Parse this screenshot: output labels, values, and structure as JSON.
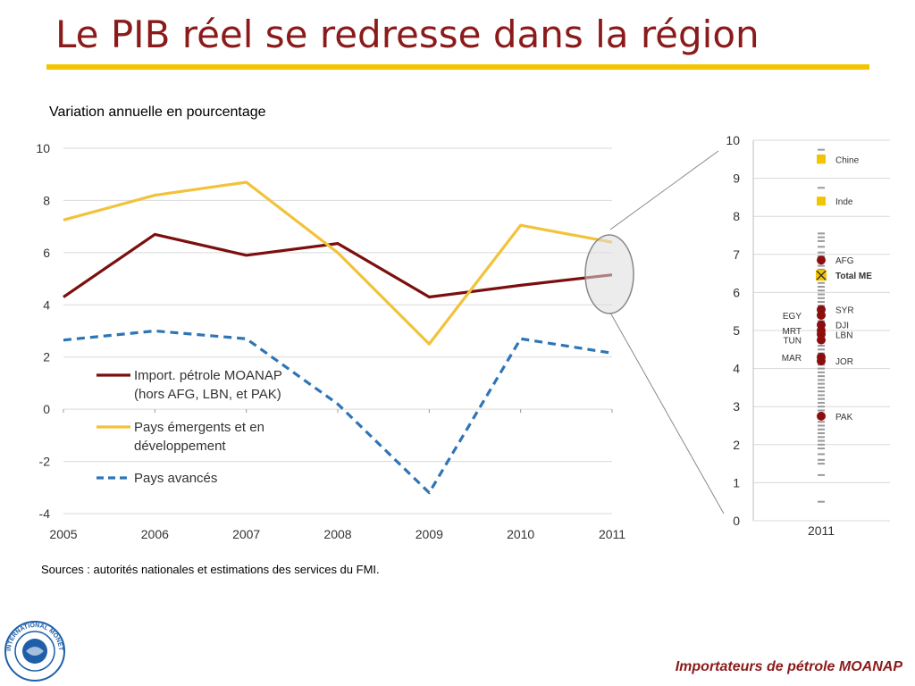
{
  "page": {
    "title": "Le PIB réel se redresse dans la région",
    "subtitle": "Variation annuelle en pourcentage",
    "sources": "Sources : autorités nationales et estimations des services du FMI.",
    "footer": "Importateurs de pétrole MOANAP",
    "accent_color": "#f2c500",
    "title_color": "#8b1a1a",
    "logo_text": "INTERNATIONAL MONETARY FUND"
  },
  "chart_data": [
    {
      "type": "line",
      "x": [
        "2005",
        "2006",
        "2007",
        "2008",
        "2009",
        "2010",
        "2011"
      ],
      "ylim": [
        -4,
        10
      ],
      "yticks": [
        "10",
        "8",
        "6",
        "4",
        "2",
        "0",
        "-2",
        "-4"
      ],
      "grid": true,
      "legend_position": "left-bottom",
      "series": [
        {
          "name": "Import. pétrole MOANAP",
          "name2": "(hors AFG, LBN, et PAK)",
          "color": "#7b0f0f",
          "style": "solid",
          "values": [
            4.3,
            6.7,
            5.9,
            6.35,
            4.3,
            4.75,
            5.15
          ]
        },
        {
          "name": "Pays émergents et en",
          "name2": "développement",
          "color": "#f2c23a",
          "style": "solid",
          "values": [
            7.25,
            8.2,
            8.7,
            6.0,
            2.5,
            7.05,
            6.4
          ]
        },
        {
          "name": "Pays avancés",
          "name2": "",
          "color": "#2e75b6",
          "style": "dashed",
          "values": [
            2.65,
            3.0,
            2.7,
            0.2,
            -3.2,
            2.7,
            2.15
          ]
        }
      ]
    },
    {
      "type": "scatter",
      "x_label": "2011",
      "ylim": [
        0,
        10
      ],
      "yticks": [
        "10",
        "9",
        "8",
        "7",
        "6",
        "5",
        "4",
        "3",
        "2",
        "1",
        "0"
      ],
      "grid": true,
      "labeled_points": [
        {
          "label": "Chine",
          "value": 9.5,
          "marker": "square",
          "color": "#f2c500",
          "side": "right"
        },
        {
          "label": "Inde",
          "value": 8.4,
          "marker": "square",
          "color": "#f2c500",
          "side": "right"
        },
        {
          "label": "AFG",
          "value": 6.85,
          "marker": "circle",
          "color": "#8b0f0f",
          "side": "right"
        },
        {
          "label": "Total ME",
          "value": 6.45,
          "marker": "x",
          "color": "#f2c500",
          "side": "right",
          "bold": true
        },
        {
          "label": "SYR",
          "value": 5.55,
          "marker": "circle",
          "color": "#8b0f0f",
          "side": "right"
        },
        {
          "label": "EGY",
          "value": 5.4,
          "marker": "circle",
          "color": "#8b0f0f",
          "side": "left"
        },
        {
          "label": "DJI",
          "value": 5.15,
          "marker": "circle",
          "color": "#8b0f0f",
          "side": "right"
        },
        {
          "label": "MRT",
          "value": 5.0,
          "marker": "circle",
          "color": "#8b0f0f",
          "side": "left"
        },
        {
          "label": "LBN",
          "value": 4.9,
          "marker": "circle",
          "color": "#8b0f0f",
          "side": "right"
        },
        {
          "label": "TUN",
          "value": 4.75,
          "marker": "circle",
          "color": "#8b0f0f",
          "side": "left"
        },
        {
          "label": "MAR",
          "value": 4.3,
          "marker": "circle",
          "color": "#8b0f0f",
          "side": "left"
        },
        {
          "label": "JOR",
          "value": 4.2,
          "marker": "circle",
          "color": "#8b0f0f",
          "side": "right"
        },
        {
          "label": "PAK",
          "value": 2.75,
          "marker": "circle",
          "color": "#8b0f0f",
          "side": "right"
        }
      ],
      "other_countries": [
        9.75,
        9.6,
        8.75,
        7.55,
        7.45,
        7.35,
        7.2,
        7.05,
        6.95,
        6.8,
        6.7,
        6.6,
        6.5,
        6.35,
        6.25,
        6.15,
        6.05,
        5.95,
        5.85,
        5.75,
        5.65,
        5.5,
        5.35,
        5.25,
        5.1,
        4.95,
        4.85,
        4.7,
        4.6,
        4.5,
        4.4,
        4.3,
        4.2,
        4.1,
        4.0,
        3.9,
        3.8,
        3.7,
        3.6,
        3.5,
        3.4,
        3.3,
        3.2,
        3.1,
        3.0,
        2.9,
        2.8,
        2.7,
        2.6,
        2.5,
        2.4,
        2.3,
        2.2,
        2.1,
        2.0,
        1.9,
        1.75,
        1.6,
        1.5,
        1.2,
        0.5
      ],
      "other_color": "#999999"
    }
  ]
}
